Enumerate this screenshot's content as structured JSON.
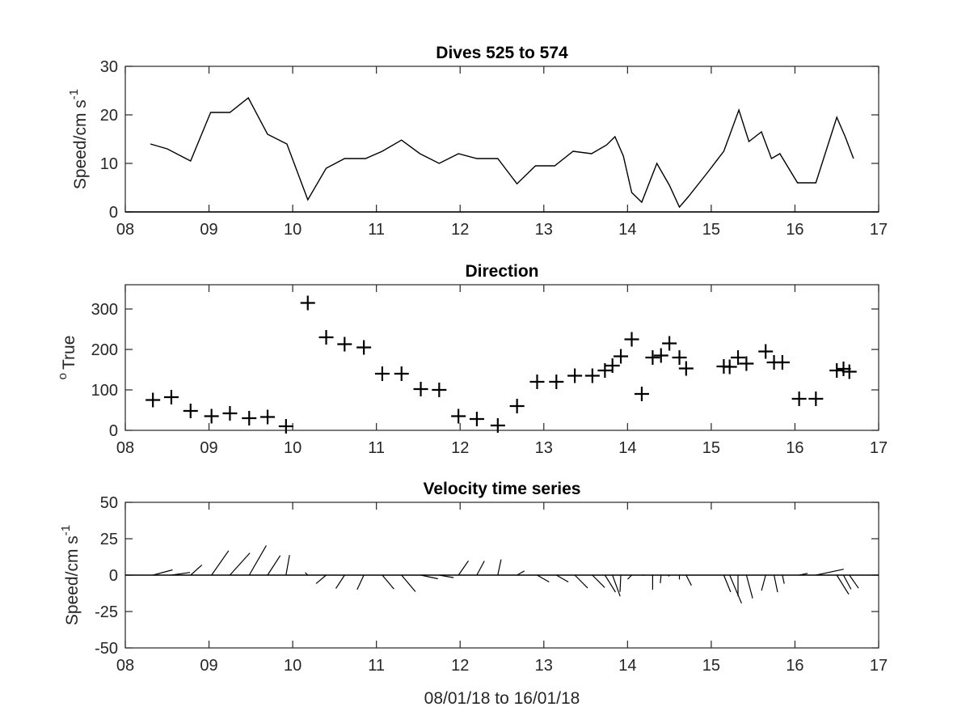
{
  "chart_data": [
    {
      "type": "line",
      "title": "Dives 525 to 574",
      "ylabel": "Speed/cm s",
      "ylabel_sup": "-1",
      "xlabel": "",
      "xlim": [
        8,
        17
      ],
      "ylim": [
        0,
        30
      ],
      "xticks": [
        8,
        9,
        10,
        11,
        12,
        13,
        14,
        15,
        16,
        17
      ],
      "xticklabels": [
        "08",
        "09",
        "10",
        "11",
        "12",
        "13",
        "14",
        "15",
        "16",
        "17"
      ],
      "yticks": [
        0,
        10,
        20,
        30
      ],
      "yticklabels": [
        "0",
        "10",
        "20",
        "30"
      ],
      "grid": false,
      "zero_line": true,
      "series": [
        {
          "x": [
            8.3,
            8.5,
            8.78,
            9.02,
            9.25,
            9.47,
            9.7,
            9.93,
            10.18,
            10.4,
            10.62,
            10.87,
            11.07,
            11.3,
            11.52,
            11.75,
            11.98,
            12.2,
            12.45,
            12.68,
            12.9,
            13.13,
            13.35,
            13.57,
            13.75,
            13.85,
            13.95,
            14.05,
            14.17,
            14.35,
            14.5,
            14.62,
            14.72,
            14.95,
            15.15,
            15.33,
            15.45,
            15.6,
            15.72,
            15.82,
            16.03,
            16.25,
            16.5,
            16.6,
            16.7
          ],
          "y": [
            14,
            13,
            10.5,
            20.5,
            20.5,
            23.5,
            16,
            14,
            2.5,
            9,
            11,
            11,
            12.5,
            14.8,
            12,
            10,
            12,
            11,
            11,
            5.8,
            9.5,
            9.5,
            12.5,
            12,
            13.8,
            15.5,
            11.5,
            4,
            2,
            10,
            5.5,
            1,
            3,
            8,
            12.5,
            21,
            14.5,
            16.5,
            11,
            12,
            6,
            6,
            19.5,
            15.5,
            11
          ]
        }
      ]
    },
    {
      "type": "scatter",
      "title": "Direction",
      "ylabel": "True",
      "ylabel_sup": "o",
      "xlabel": "",
      "xlim": [
        8,
        17
      ],
      "ylim": [
        0,
        360
      ],
      "xticks": [
        8,
        9,
        10,
        11,
        12,
        13,
        14,
        15,
        16,
        17
      ],
      "xticklabels": [
        "08",
        "09",
        "10",
        "11",
        "12",
        "13",
        "14",
        "15",
        "16",
        "17"
      ],
      "yticks": [
        0,
        100,
        200,
        300
      ],
      "yticklabels": [
        "0",
        "100",
        "200",
        "300"
      ],
      "grid": false,
      "marker": "+",
      "series": [
        {
          "x": [
            8.33,
            8.55,
            8.78,
            9.03,
            9.25,
            9.48,
            9.7,
            9.92,
            10.18,
            10.4,
            10.62,
            10.85,
            11.07,
            11.3,
            11.53,
            11.75,
            11.98,
            12.2,
            12.45,
            12.68,
            12.92,
            13.15,
            13.37,
            13.58,
            13.73,
            13.82,
            13.92,
            14.05,
            14.17,
            14.3,
            14.4,
            14.5,
            14.62,
            14.7,
            15.15,
            15.22,
            15.32,
            15.42,
            15.65,
            15.75,
            15.85,
            16.05,
            16.25,
            16.5,
            16.58,
            16.65
          ],
          "y": [
            75,
            82,
            48,
            35,
            42,
            30,
            33,
            10,
            315,
            230,
            213,
            205,
            140,
            140,
            102,
            100,
            35,
            28,
            12,
            60,
            120,
            120,
            135,
            135,
            148,
            160,
            183,
            225,
            90,
            180,
            185,
            215,
            180,
            153,
            158,
            157,
            180,
            165,
            195,
            168,
            168,
            78,
            78,
            148,
            152,
            145
          ]
        }
      ]
    },
    {
      "type": "stick",
      "title": "Velocity time series",
      "ylabel": "Speed/cm s",
      "ylabel_sup": "-1",
      "xlabel": "08/01/18 to 16/01/18",
      "xlim": [
        8,
        17
      ],
      "ylim": [
        -50,
        50
      ],
      "xticks": [
        8,
        9,
        10,
        11,
        12,
        13,
        14,
        15,
        16,
        17
      ],
      "xticklabels": [
        "08",
        "09",
        "10",
        "11",
        "12",
        "13",
        "14",
        "15",
        "16",
        "17"
      ],
      "yticks": [
        -50,
        -25,
        0,
        25,
        50
      ],
      "yticklabels": [
        "-50",
        "-25",
        "0",
        "25",
        "50"
      ],
      "grid": false,
      "zero_line": true,
      "series": [
        {
          "x": [
            8.33,
            8.55,
            8.78,
            9.03,
            9.25,
            9.48,
            9.7,
            9.92,
            10.18,
            10.4,
            10.62,
            10.85,
            11.07,
            11.3,
            11.53,
            11.75,
            11.98,
            12.2,
            12.45,
            12.68,
            12.92,
            13.15,
            13.37,
            13.58,
            13.73,
            13.82,
            13.92,
            14.05,
            14.17,
            14.3,
            14.4,
            14.5,
            14.62,
            14.7,
            15.15,
            15.22,
            15.32,
            15.42,
            15.65,
            15.75,
            15.85,
            16.05,
            16.25,
            16.5,
            16.58,
            16.65
          ],
          "speed": [
            14,
            13,
            10.5,
            20.5,
            20.5,
            23.5,
            16,
            14,
            2.5,
            9,
            11,
            11,
            12.5,
            14.8,
            12,
            10,
            12,
            11,
            11,
            5.8,
            9.5,
            9.5,
            12.5,
            12,
            13.8,
            15.5,
            11.5,
            4,
            2,
            10,
            5.5,
            1,
            3,
            8,
            12.5,
            21,
            14.5,
            16.5,
            11,
            12,
            6,
            6,
            19.5,
            15.5,
            11,
            11
          ],
          "direction": [
            75,
            82,
            48,
            35,
            42,
            30,
            33,
            10,
            315,
            230,
            213,
            205,
            140,
            140,
            102,
            100,
            35,
            28,
            12,
            60,
            120,
            120,
            135,
            135,
            148,
            160,
            183,
            225,
            90,
            180,
            185,
            215,
            180,
            153,
            158,
            157,
            180,
            165,
            195,
            168,
            168,
            78,
            78,
            148,
            152,
            145
          ]
        }
      ]
    }
  ]
}
